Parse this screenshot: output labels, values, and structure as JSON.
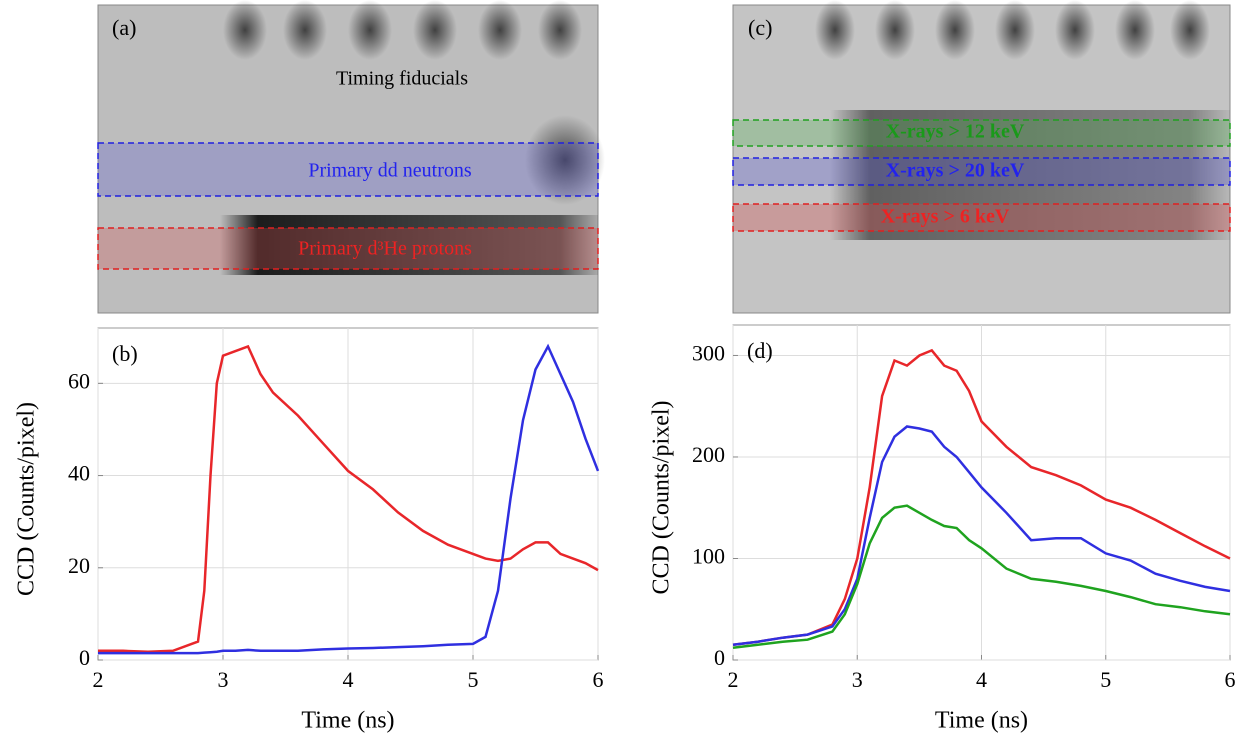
{
  "images": [
    {
      "label": "(a)",
      "annotations": [
        "Timing fiducials",
        "Primary dd neutrons",
        "Primary d³He protons"
      ]
    },
    {
      "label": "(c)",
      "annotations": [
        "X-rays > 12 keV",
        "X-rays > 20 keV",
        "X-rays > 6 keV"
      ]
    }
  ],
  "chart_data": [
    {
      "type": "line",
      "title": "(b)",
      "x_label": "Time (ns)",
      "y_label": "CCD (Counts/pixel)",
      "xlim": [
        2,
        6
      ],
      "xticks": [
        2,
        3,
        4,
        5,
        6
      ],
      "ylim": [
        0,
        72
      ],
      "yticks": [
        0,
        20,
        40,
        60
      ],
      "grid": true,
      "x": [
        2,
        2.2,
        2.4,
        2.6,
        2.8,
        2.85,
        2.9,
        2.95,
        3.0,
        3.1,
        3.2,
        3.3,
        3.4,
        3.6,
        3.8,
        4.0,
        4.2,
        4.4,
        4.6,
        4.8,
        5.0,
        5.1,
        5.2,
        5.3,
        5.4,
        5.5,
        5.6,
        5.7,
        5.8,
        5.9,
        6.0
      ],
      "series": [
        {
          "color": "#e8262a",
          "values": [
            2,
            2,
            1.8,
            2,
            4,
            15,
            40,
            60,
            66,
            67,
            68,
            62,
            58,
            53,
            47,
            41,
            37,
            32,
            28,
            25,
            23,
            22,
            21.5,
            22,
            24,
            25.5,
            25.5,
            23,
            22,
            21,
            19.5
          ]
        },
        {
          "color": "#2f2fe0",
          "values": [
            1.5,
            1.5,
            1.5,
            1.5,
            1.5,
            1.6,
            1.7,
            1.8,
            2,
            2,
            2.2,
            2,
            2,
            2,
            2.3,
            2.5,
            2.6,
            2.8,
            3,
            3.3,
            3.5,
            5,
            15,
            35,
            52,
            63,
            68,
            62,
            56,
            48,
            41
          ]
        }
      ]
    },
    {
      "type": "line",
      "title": "(d)",
      "x_label": "Time (ns)",
      "y_label": "CCD (Counts/pixel)",
      "xlim": [
        2,
        6
      ],
      "xticks": [
        2,
        3,
        4,
        5,
        6
      ],
      "ylim": [
        0,
        330
      ],
      "yticks": [
        0,
        100,
        200,
        300
      ],
      "grid": true,
      "x": [
        2,
        2.2,
        2.4,
        2.6,
        2.8,
        2.9,
        3.0,
        3.1,
        3.2,
        3.3,
        3.4,
        3.5,
        3.6,
        3.7,
        3.8,
        3.9,
        4.0,
        4.2,
        4.4,
        4.6,
        4.8,
        5.0,
        5.2,
        5.4,
        5.6,
        5.8,
        6.0
      ],
      "series": [
        {
          "color": "#e8262a",
          "values": [
            15,
            18,
            22,
            25,
            35,
            60,
            100,
            170,
            260,
            295,
            290,
            300,
            305,
            290,
            285,
            265,
            235,
            210,
            190,
            182,
            172,
            158,
            150,
            138,
            125,
            112,
            100
          ]
        },
        {
          "color": "#2f2fe0",
          "values": [
            15,
            18,
            22,
            25,
            33,
            50,
            80,
            140,
            195,
            220,
            230,
            228,
            225,
            210,
            200,
            185,
            170,
            145,
            118,
            120,
            120,
            105,
            98,
            85,
            78,
            72,
            68
          ]
        },
        {
          "color": "#1fa31f",
          "values": [
            12,
            15,
            18,
            20,
            28,
            45,
            75,
            115,
            140,
            150,
            152,
            145,
            138,
            132,
            130,
            118,
            110,
            90,
            80,
            77,
            73,
            68,
            62,
            55,
            52,
            48,
            45
          ]
        }
      ]
    }
  ]
}
